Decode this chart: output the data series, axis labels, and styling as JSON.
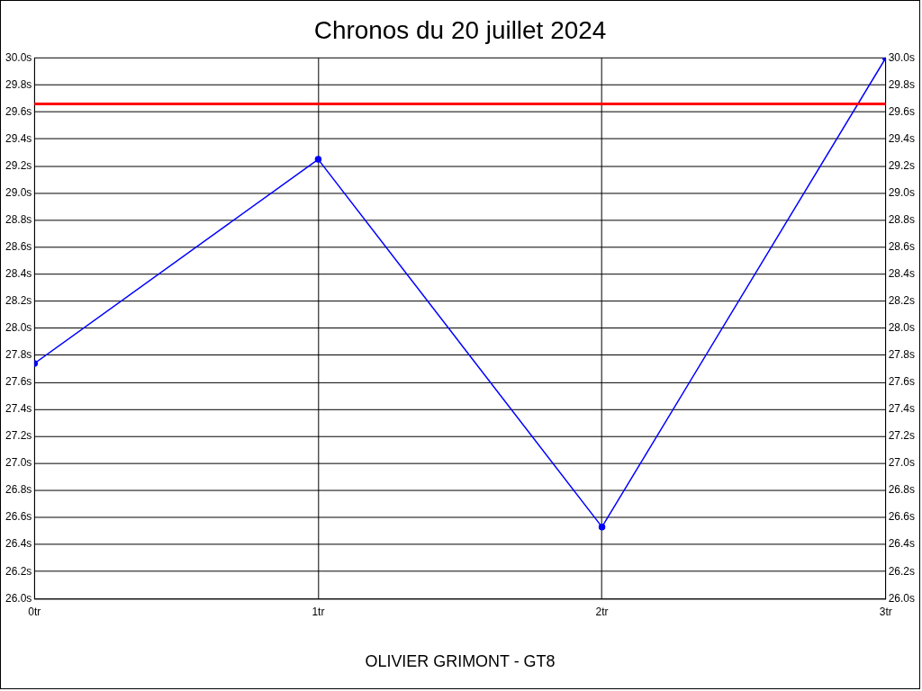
{
  "chart_data": {
    "type": "line",
    "title": "Chronos du 20 juillet 2024",
    "xlabel": "OLIVIER GRIMONT - GT8",
    "x": [
      0,
      1,
      2,
      3
    ],
    "series": [
      {
        "color": "#0000ff",
        "values": [
          27.74,
          29.25,
          26.53,
          30.0
        ]
      }
    ],
    "xlim": [
      0,
      3
    ],
    "xticks": [
      {
        "value": 0,
        "label": "0tr"
      },
      {
        "value": 1,
        "label": "1tr"
      },
      {
        "value": 2,
        "label": "2tr"
      },
      {
        "value": 3,
        "label": "3tr"
      }
    ],
    "ylim": [
      26.0,
      30.0
    ],
    "yticks": [
      {
        "value": 26.0,
        "label": "26.0s"
      },
      {
        "value": 26.2,
        "label": "26.2s"
      },
      {
        "value": 26.4,
        "label": "26.4s"
      },
      {
        "value": 26.6,
        "label": "26.6s"
      },
      {
        "value": 26.8,
        "label": "26.8s"
      },
      {
        "value": 27.0,
        "label": "27.0s"
      },
      {
        "value": 27.2,
        "label": "27.2s"
      },
      {
        "value": 27.4,
        "label": "27.4s"
      },
      {
        "value": 27.6,
        "label": "27.6s"
      },
      {
        "value": 27.8,
        "label": "27.8s"
      },
      {
        "value": 28.0,
        "label": "28.0s"
      },
      {
        "value": 28.2,
        "label": "28.2s"
      },
      {
        "value": 28.4,
        "label": "28.4s"
      },
      {
        "value": 28.6,
        "label": "28.6s"
      },
      {
        "value": 28.8,
        "label": "28.8s"
      },
      {
        "value": 29.0,
        "label": "29.0s"
      },
      {
        "value": 29.2,
        "label": "29.2s"
      },
      {
        "value": 29.4,
        "label": "29.4s"
      },
      {
        "value": 29.6,
        "label": "29.6s"
      },
      {
        "value": 29.8,
        "label": "29.8s"
      },
      {
        "value": 30.0,
        "label": "30.0s"
      }
    ],
    "y2lim": [
      26.0,
      30.0
    ],
    "y2ticks": [
      {
        "value": 26.0,
        "label": "26.0s"
      },
      {
        "value": 26.2,
        "label": "26.2s"
      },
      {
        "value": 26.4,
        "label": "26.4s"
      },
      {
        "value": 26.6,
        "label": "26.6s"
      },
      {
        "value": 26.8,
        "label": "26.8s"
      },
      {
        "value": 27.0,
        "label": "27.0s"
      },
      {
        "value": 27.2,
        "label": "27.2s"
      },
      {
        "value": 27.4,
        "label": "27.4s"
      },
      {
        "value": 27.6,
        "label": "27.6s"
      },
      {
        "value": 27.8,
        "label": "27.8s"
      },
      {
        "value": 28.0,
        "label": "28.0s"
      },
      {
        "value": 28.2,
        "label": "28.2s"
      },
      {
        "value": 28.4,
        "label": "28.4s"
      },
      {
        "value": 28.6,
        "label": "28.6s"
      },
      {
        "value": 28.8,
        "label": "28.8s"
      },
      {
        "value": 29.0,
        "label": "29.0s"
      },
      {
        "value": 29.2,
        "label": "29.2s"
      },
      {
        "value": 29.4,
        "label": "29.4s"
      },
      {
        "value": 29.6,
        "label": "29.6s"
      },
      {
        "value": 29.8,
        "label": "29.8s"
      },
      {
        "value": 30.0,
        "label": "30.0s"
      }
    ],
    "ref_lines": [
      {
        "axis": "y",
        "value": 29.66,
        "color": "#ff0000"
      }
    ],
    "grid": true,
    "marker": "circle"
  }
}
